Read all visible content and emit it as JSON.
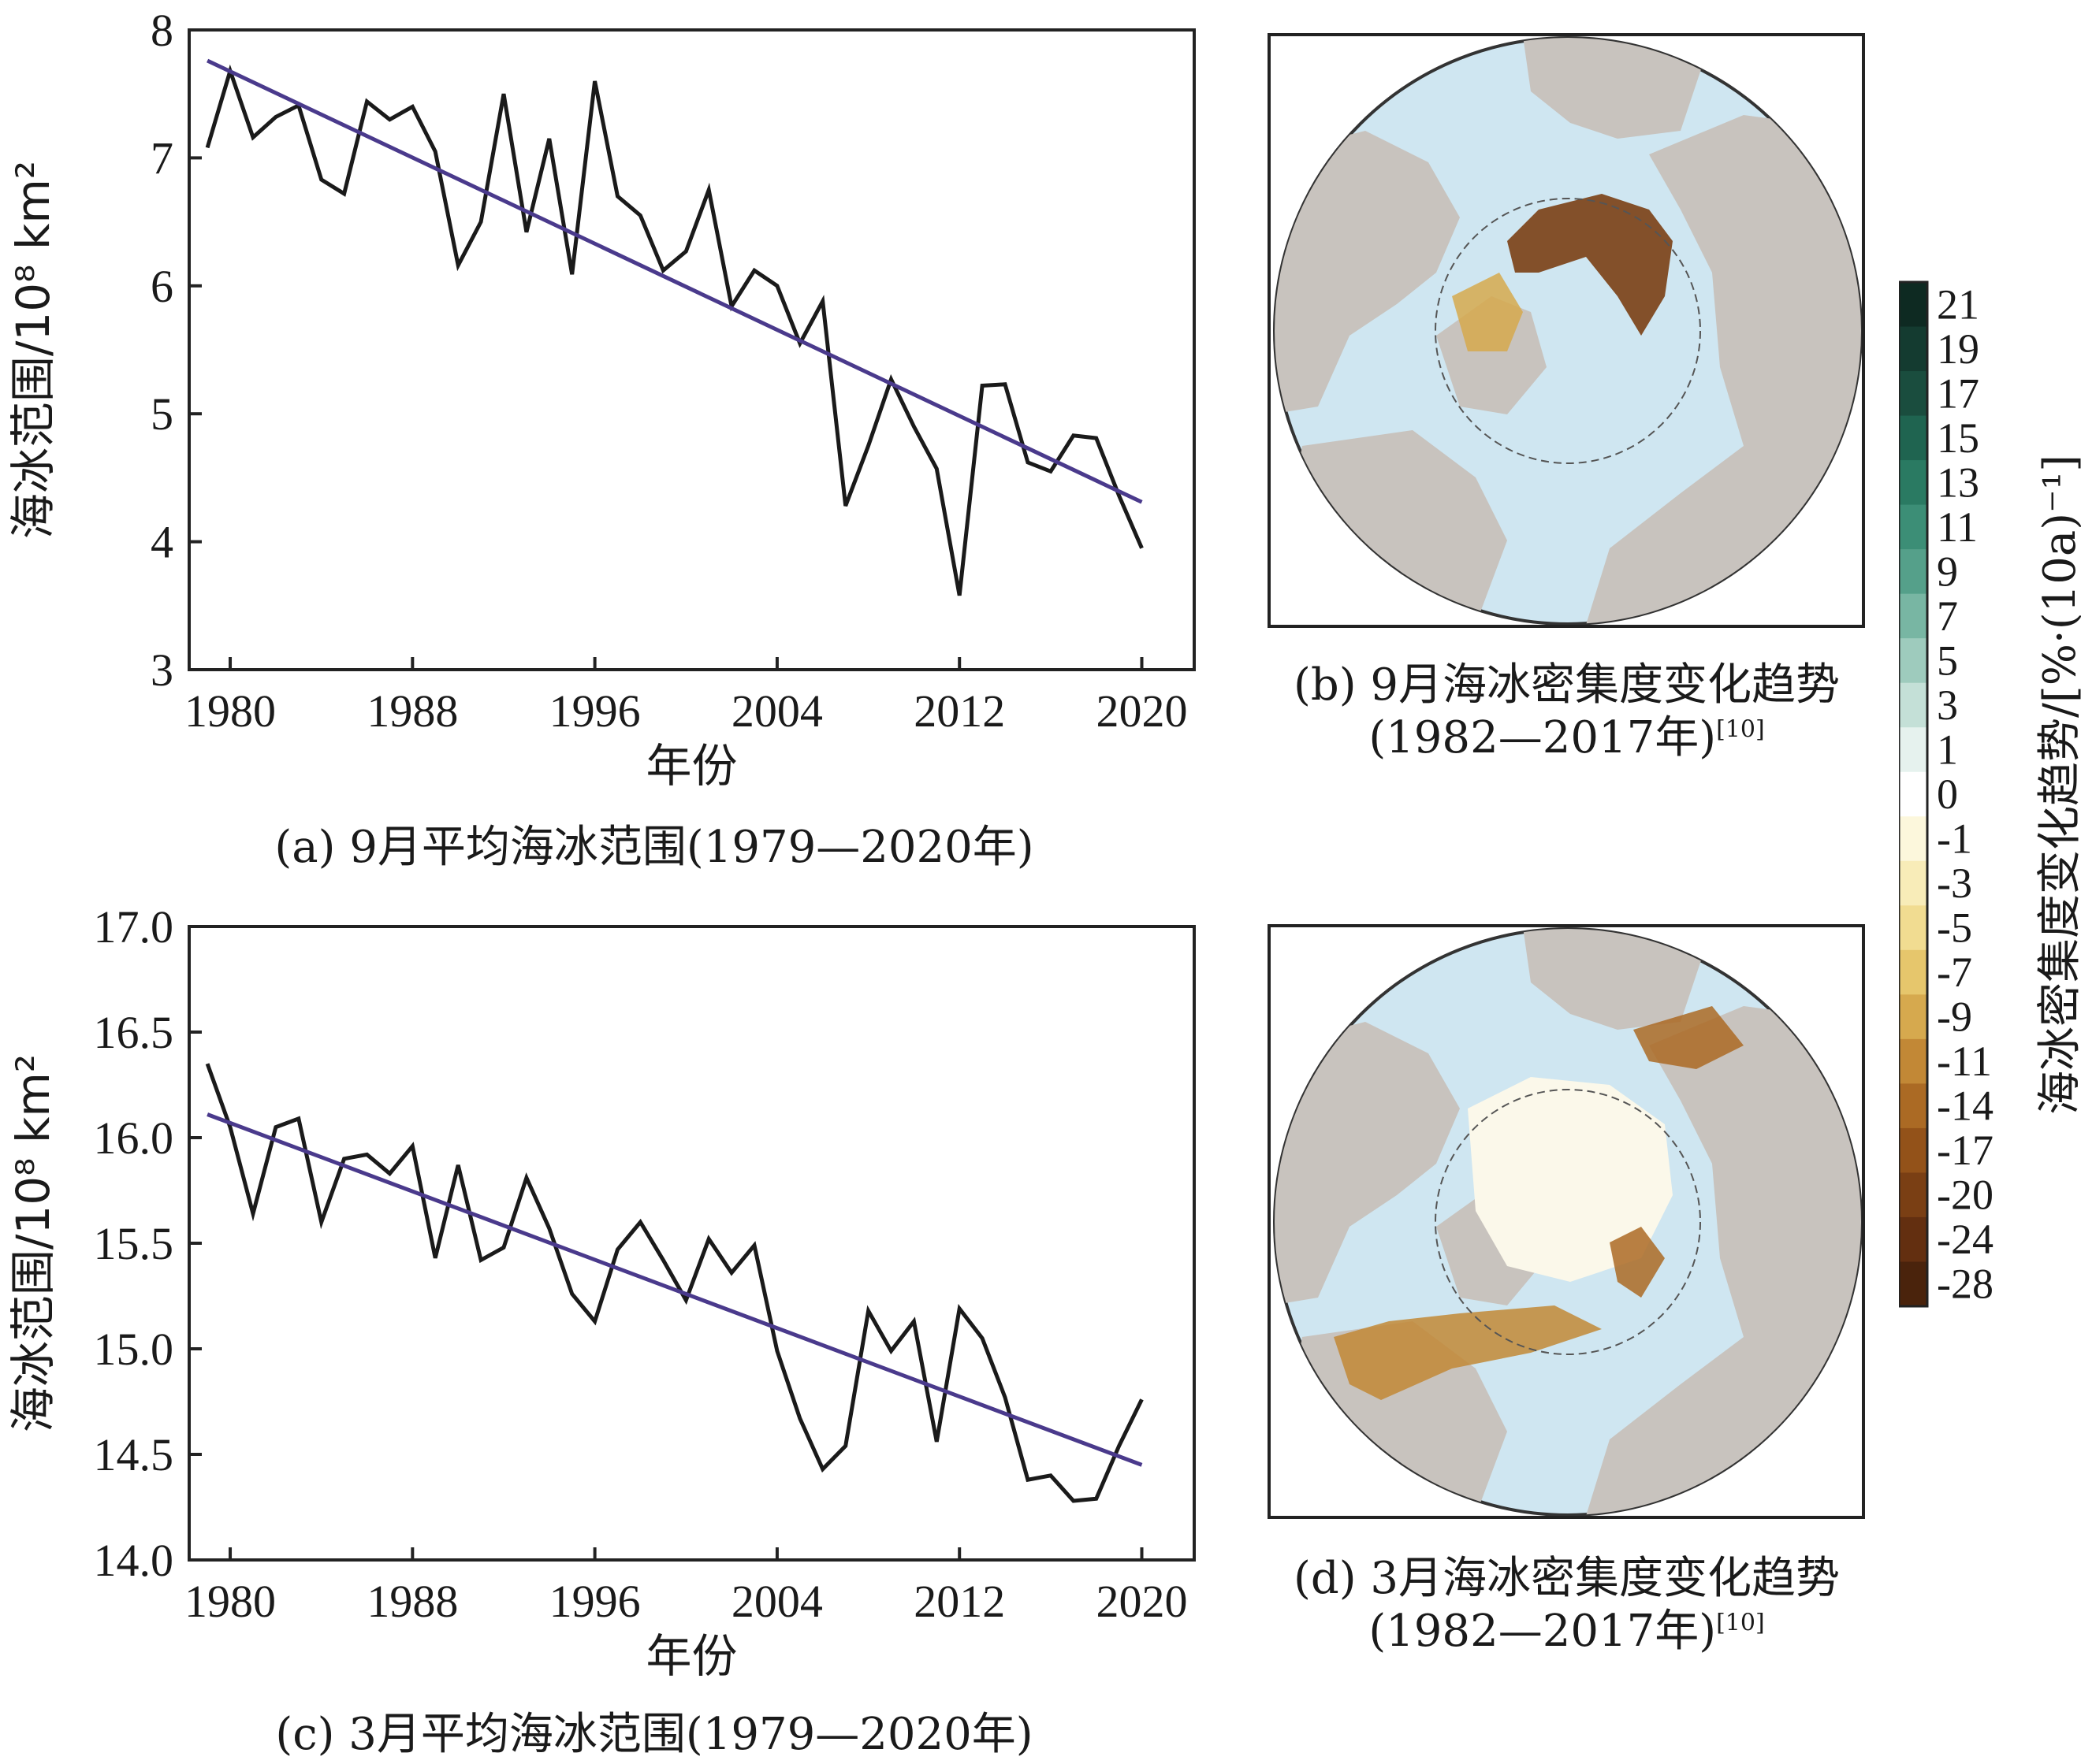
{
  "chart_data": [
    {
      "id": "a",
      "type": "line",
      "xlabel": "年份",
      "ylabel": "海冰范围/10⁸ km²",
      "xticks": [
        1980,
        1988,
        1996,
        2004,
        2012,
        2020
      ],
      "yticks": [
        "3",
        "4",
        "5",
        "6",
        "7",
        "8"
      ],
      "xlim": [
        1978.2,
        2022.3
      ],
      "ylim": [
        3,
        8
      ],
      "series": [
        {
          "x": [
            1979,
            1980,
            1981,
            1982,
            1983,
            1984,
            1985,
            1986,
            1987,
            1988,
            1989,
            1990,
            1991,
            1992,
            1993,
            1994,
            1995,
            1996,
            1997,
            1998,
            1999,
            2000,
            2001,
            2002,
            2003,
            2004,
            2005,
            2006,
            2007,
            2008,
            2009,
            2010,
            2011,
            2012,
            2013,
            2014,
            2015,
            2016,
            2017,
            2018,
            2019,
            2020
          ],
          "y": [
            7.08,
            7.68,
            7.16,
            7.32,
            7.41,
            6.83,
            6.72,
            7.44,
            7.3,
            7.4,
            7.05,
            6.16,
            6.5,
            7.5,
            6.42,
            7.15,
            6.09,
            7.6,
            6.7,
            6.55,
            6.12,
            6.27,
            6.75,
            5.84,
            6.12,
            6.0,
            5.55,
            5.88,
            4.28,
            4.75,
            5.27,
            4.9,
            4.57,
            3.58,
            5.22,
            5.23,
            4.62,
            4.55,
            4.83,
            4.81,
            4.36,
            3.95
          ],
          "color": "#1a1a1a"
        },
        {
          "x": [
            1979,
            2020
          ],
          "y": [
            7.76,
            4.31
          ],
          "color": "#4a3a8c",
          "role": "trend"
        }
      ],
      "caption": "(a) 9月平均海冰范围(1979—2020年)"
    },
    {
      "id": "c",
      "type": "line",
      "xlabel": "年份",
      "ylabel": "海冰范围/10⁸ km²",
      "xticks": [
        1980,
        1988,
        1996,
        2004,
        2012,
        2020
      ],
      "yticks": [
        "14.0",
        "14.5",
        "15.0",
        "15.5",
        "16.0",
        "16.5",
        "17.0"
      ],
      "xlim": [
        1978.2,
        2022.3
      ],
      "ylim": [
        14.0,
        17.0
      ],
      "series": [
        {
          "x": [
            1979,
            1980,
            1981,
            1982,
            1983,
            1984,
            1985,
            1986,
            1987,
            1988,
            1989,
            1990,
            1991,
            1992,
            1993,
            1994,
            1995,
            1996,
            1997,
            1998,
            1999,
            2000,
            2001,
            2002,
            2003,
            2004,
            2005,
            2006,
            2007,
            2008,
            2009,
            2010,
            2011,
            2012,
            2013,
            2014,
            2015,
            2016,
            2017,
            2018,
            2019,
            2020
          ],
          "y": [
            16.35,
            16.05,
            15.64,
            16.05,
            16.09,
            15.6,
            15.9,
            15.92,
            15.83,
            15.96,
            15.43,
            15.87,
            15.42,
            15.48,
            15.81,
            15.57,
            15.26,
            15.13,
            15.47,
            15.6,
            15.42,
            15.23,
            15.52,
            15.36,
            15.49,
            14.99,
            14.67,
            14.43,
            14.54,
            15.18,
            14.99,
            15.13,
            14.56,
            15.19,
            15.05,
            14.77,
            14.38,
            14.4,
            14.28,
            14.29,
            14.54,
            14.76
          ],
          "color": "#1a1a1a"
        },
        {
          "x": [
            1979,
            2020
          ],
          "y": [
            16.11,
            14.45
          ],
          "color": "#4a3a8c",
          "role": "trend"
        }
      ],
      "caption": "(c) 3月平均海冰范围(1979—2020年)"
    }
  ],
  "maps": {
    "b": {
      "caption_line1": "(b) 9月海冰密集度变化趋势",
      "caption_line2": "(1982—2017年)",
      "ref": "[10]"
    },
    "d": {
      "caption_line1": "(d) 3月海冰密集度变化趋势",
      "caption_line2": "(1982—2017年)",
      "ref": "[10]"
    }
  },
  "colorbar": {
    "title": "海冰密集度变化趋势/[%·(10a)⁻¹]",
    "labels": [
      "21",
      "19",
      "17",
      "15",
      "13",
      "11",
      "9",
      "7",
      "5",
      "3",
      "1",
      "0",
      "-1",
      "-3",
      "-5",
      "-7",
      "-9",
      "-11",
      "-14",
      "-17",
      "-20",
      "-24",
      "-28"
    ],
    "colors": [
      "#0e2a22",
      "#143b30",
      "#1a4d3e",
      "#1f6450",
      "#2a7a62",
      "#3c8e76",
      "#55a08a",
      "#78b6a3",
      "#9ecbbd",
      "#c4e0d7",
      "#e6f2ee",
      "#ffffff",
      "#fcf7dc",
      "#f8ecb8",
      "#f1dc91",
      "#e6c66c",
      "#d6a94e",
      "#c28836",
      "#ab6a24",
      "#935219",
      "#7a3f14",
      "#632f10",
      "#4a230c"
    ]
  },
  "colors": {
    "ocean": "#cfe6f1",
    "land": "#c8c3be",
    "trend": "#4a3a8c"
  }
}
